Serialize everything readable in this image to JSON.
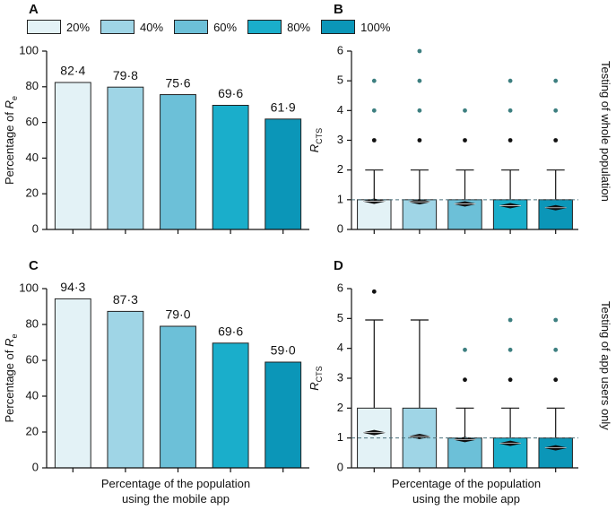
{
  "legend": {
    "items": [
      {
        "label": "20%",
        "color": "#e3f2f6"
      },
      {
        "label": "40%",
        "color": "#9fd5e6"
      },
      {
        "label": "60%",
        "color": "#6cc0d8"
      },
      {
        "label": "80%",
        "color": "#1aaecb"
      },
      {
        "label": "100%",
        "color": "#0b96b8"
      }
    ]
  },
  "panels": {
    "A": "A",
    "B": "B",
    "C": "C",
    "D": "D"
  },
  "side_labels": {
    "top": "Testing of whole population",
    "bottom": "Testing of app users only"
  },
  "x_title": {
    "line1": "Percentage of the population",
    "line2": "using the mobile app"
  },
  "chart_data": [
    {
      "panel": "A",
      "type": "bar",
      "categories": [
        "20%",
        "40%",
        "60%",
        "80%",
        "100%"
      ],
      "values": [
        82.4,
        79.8,
        75.6,
        69.6,
        61.9
      ],
      "labels": [
        "82·4",
        "79·8",
        "75·6",
        "69·6",
        "61·9"
      ],
      "ylabel_pre": "Percentage of ",
      "ylabel_var": "R",
      "ylabel_sub": "e",
      "ylim": [
        0,
        100
      ],
      "yticks": [
        0,
        20,
        40,
        60,
        80,
        100
      ]
    },
    {
      "panel": "B",
      "type": "box",
      "categories": [
        "20%",
        "40%",
        "60%",
        "80%",
        "100%"
      ],
      "series": [
        {
          "q1": 0,
          "q3": 1,
          "mean": 0.95,
          "whisker_low": 0,
          "whisker_high": 2,
          "black_outliers": [
            3
          ],
          "teal_outliers": [
            4,
            5
          ]
        },
        {
          "q1": 0,
          "q3": 1,
          "mean": 0.93,
          "whisker_low": 0,
          "whisker_high": 2,
          "black_outliers": [
            3
          ],
          "teal_outliers": [
            4,
            5,
            6
          ]
        },
        {
          "q1": 0,
          "q3": 1,
          "mean": 0.86,
          "whisker_low": 0,
          "whisker_high": 2,
          "black_outliers": [
            3
          ],
          "teal_outliers": [
            4
          ]
        },
        {
          "q1": 0,
          "q3": 1,
          "mean": 0.8,
          "whisker_low": 0,
          "whisker_high": 2,
          "black_outliers": [
            3
          ],
          "teal_outliers": [
            4,
            5
          ]
        },
        {
          "q1": 0,
          "q3": 1,
          "mean": 0.73,
          "whisker_low": 0,
          "whisker_high": 2,
          "black_outliers": [
            3
          ],
          "teal_outliers": [
            4,
            5
          ]
        }
      ],
      "reference_line": 1,
      "ylabel_var": "R",
      "ylabel_sub": "CTS",
      "ylim": [
        0,
        6
      ],
      "yticks": [
        0,
        1,
        2,
        3,
        4,
        5,
        6
      ]
    },
    {
      "panel": "C",
      "type": "bar",
      "categories": [
        "20%",
        "40%",
        "60%",
        "80%",
        "100%"
      ],
      "values": [
        94.3,
        87.3,
        79.0,
        69.6,
        59.0
      ],
      "labels": [
        "94·3",
        "87·3",
        "79·0",
        "69·6",
        "59·0"
      ],
      "ylabel_pre": "Percentage of ",
      "ylabel_var": "R",
      "ylabel_sub": "e",
      "ylim": [
        0,
        100
      ],
      "yticks": [
        0,
        20,
        40,
        60,
        80,
        100
      ]
    },
    {
      "panel": "D",
      "type": "box",
      "categories": [
        "20%",
        "40%",
        "60%",
        "80%",
        "100%"
      ],
      "series": [
        {
          "q1": 0,
          "q3": 2,
          "mean": 1.18,
          "whisker_low": 0,
          "whisker_high": 4.95,
          "black_outliers": [
            5.9
          ],
          "teal_outliers": []
        },
        {
          "q1": 0,
          "q3": 2,
          "mean": 1.05,
          "whisker_low": 0,
          "whisker_high": 4.95,
          "black_outliers": [],
          "teal_outliers": []
        },
        {
          "q1": 0,
          "q3": 1,
          "mean": 0.95,
          "whisker_low": 0,
          "whisker_high": 2,
          "black_outliers": [
            2.95
          ],
          "teal_outliers": [
            3.95
          ]
        },
        {
          "q1": 0,
          "q3": 1,
          "mean": 0.82,
          "whisker_low": 0,
          "whisker_high": 2,
          "black_outliers": [
            2.95
          ],
          "teal_outliers": [
            3.95,
            4.95
          ]
        },
        {
          "q1": 0,
          "q3": 1,
          "mean": 0.67,
          "whisker_low": 0,
          "whisker_high": 2,
          "black_outliers": [
            2.95
          ],
          "teal_outliers": [
            3.95,
            4.95
          ]
        }
      ],
      "reference_line": 1,
      "ylabel_var": "R",
      "ylabel_sub": "CTS",
      "ylim": [
        0,
        6
      ],
      "yticks": [
        0,
        1,
        2,
        3,
        4,
        5,
        6
      ]
    }
  ]
}
